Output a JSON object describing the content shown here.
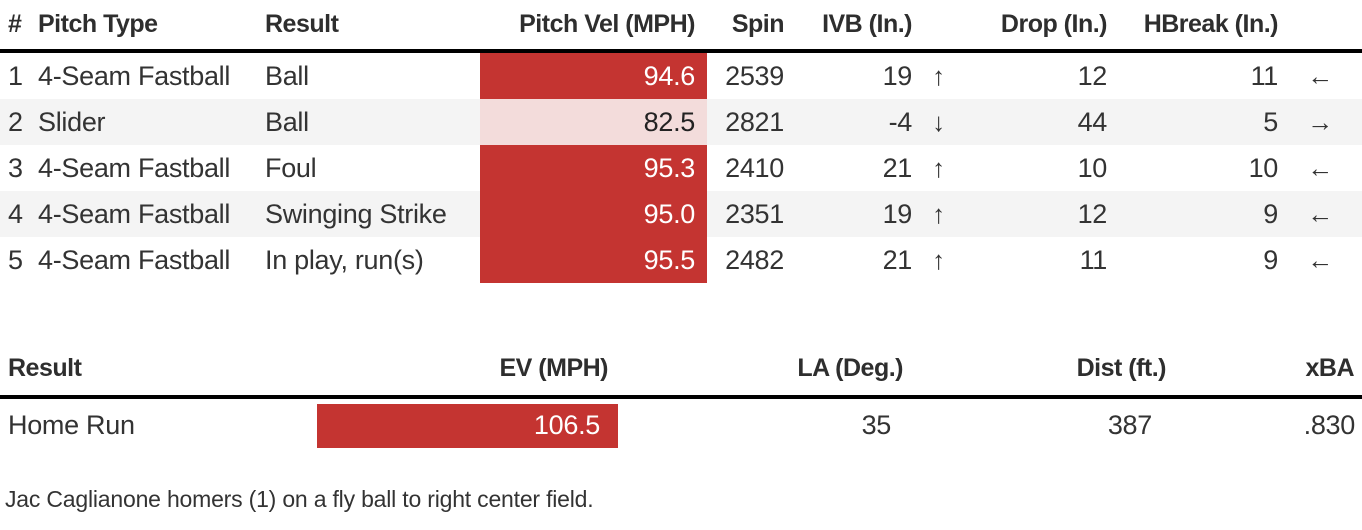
{
  "colors": {
    "velocity_hot_red": "#C43431",
    "velocity_cool_pink": "#F3DCDB",
    "row_alt_gray": "#F4F4F4",
    "header_border_black": "#000000",
    "text_dark": "#333333"
  },
  "chart_data": [
    {
      "type": "table",
      "name": "pitch_by_pitch",
      "columns": [
        "#",
        "Pitch Type",
        "Result",
        "Pitch Vel (MPH)",
        "Spin",
        "IVB (In.)",
        "Drop (In.)",
        "HBreak (In.)"
      ],
      "rows": [
        {
          "num": "1",
          "pitch_type": "4-Seam Fastball",
          "result": "Ball",
          "vel": "94.6",
          "vel_heat": "hot",
          "spin": "2539",
          "ivb": "19",
          "ivb_dir": "↑",
          "drop": "12",
          "hbreak": "11",
          "hbreak_dir": "←"
        },
        {
          "num": "2",
          "pitch_type": "Slider",
          "result": "Ball",
          "vel": "82.5",
          "vel_heat": "cool",
          "spin": "2821",
          "ivb": "-4",
          "ivb_dir": "↓",
          "drop": "44",
          "hbreak": "5",
          "hbreak_dir": "→"
        },
        {
          "num": "3",
          "pitch_type": "4-Seam Fastball",
          "result": "Foul",
          "vel": "95.3",
          "vel_heat": "hot",
          "spin": "2410",
          "ivb": "21",
          "ivb_dir": "↑",
          "drop": "10",
          "hbreak": "10",
          "hbreak_dir": "←"
        },
        {
          "num": "4",
          "pitch_type": "4-Seam Fastball",
          "result": "Swinging Strike",
          "vel": "95.0",
          "vel_heat": "hot",
          "spin": "2351",
          "ivb": "19",
          "ivb_dir": "↑",
          "drop": "12",
          "hbreak": "9",
          "hbreak_dir": "←"
        },
        {
          "num": "5",
          "pitch_type": "4-Seam Fastball",
          "result": "In play, run(s)",
          "vel": "95.5",
          "vel_heat": "hot",
          "spin": "2482",
          "ivb": "21",
          "ivb_dir": "↑",
          "drop": "11",
          "hbreak": "9",
          "hbreak_dir": "←"
        }
      ]
    },
    {
      "type": "table",
      "name": "batted_ball",
      "columns": [
        "Result",
        "EV (MPH)",
        "LA (Deg.)",
        "Dist (ft.)",
        "xBA"
      ],
      "rows": [
        {
          "result": "Home Run",
          "ev": "106.5",
          "ev_heat": "hot",
          "la": "35",
          "dist": "387",
          "xba": ".830"
        }
      ]
    }
  ],
  "caption": "Jac Caglianone homers (1) on a fly ball to right center field."
}
